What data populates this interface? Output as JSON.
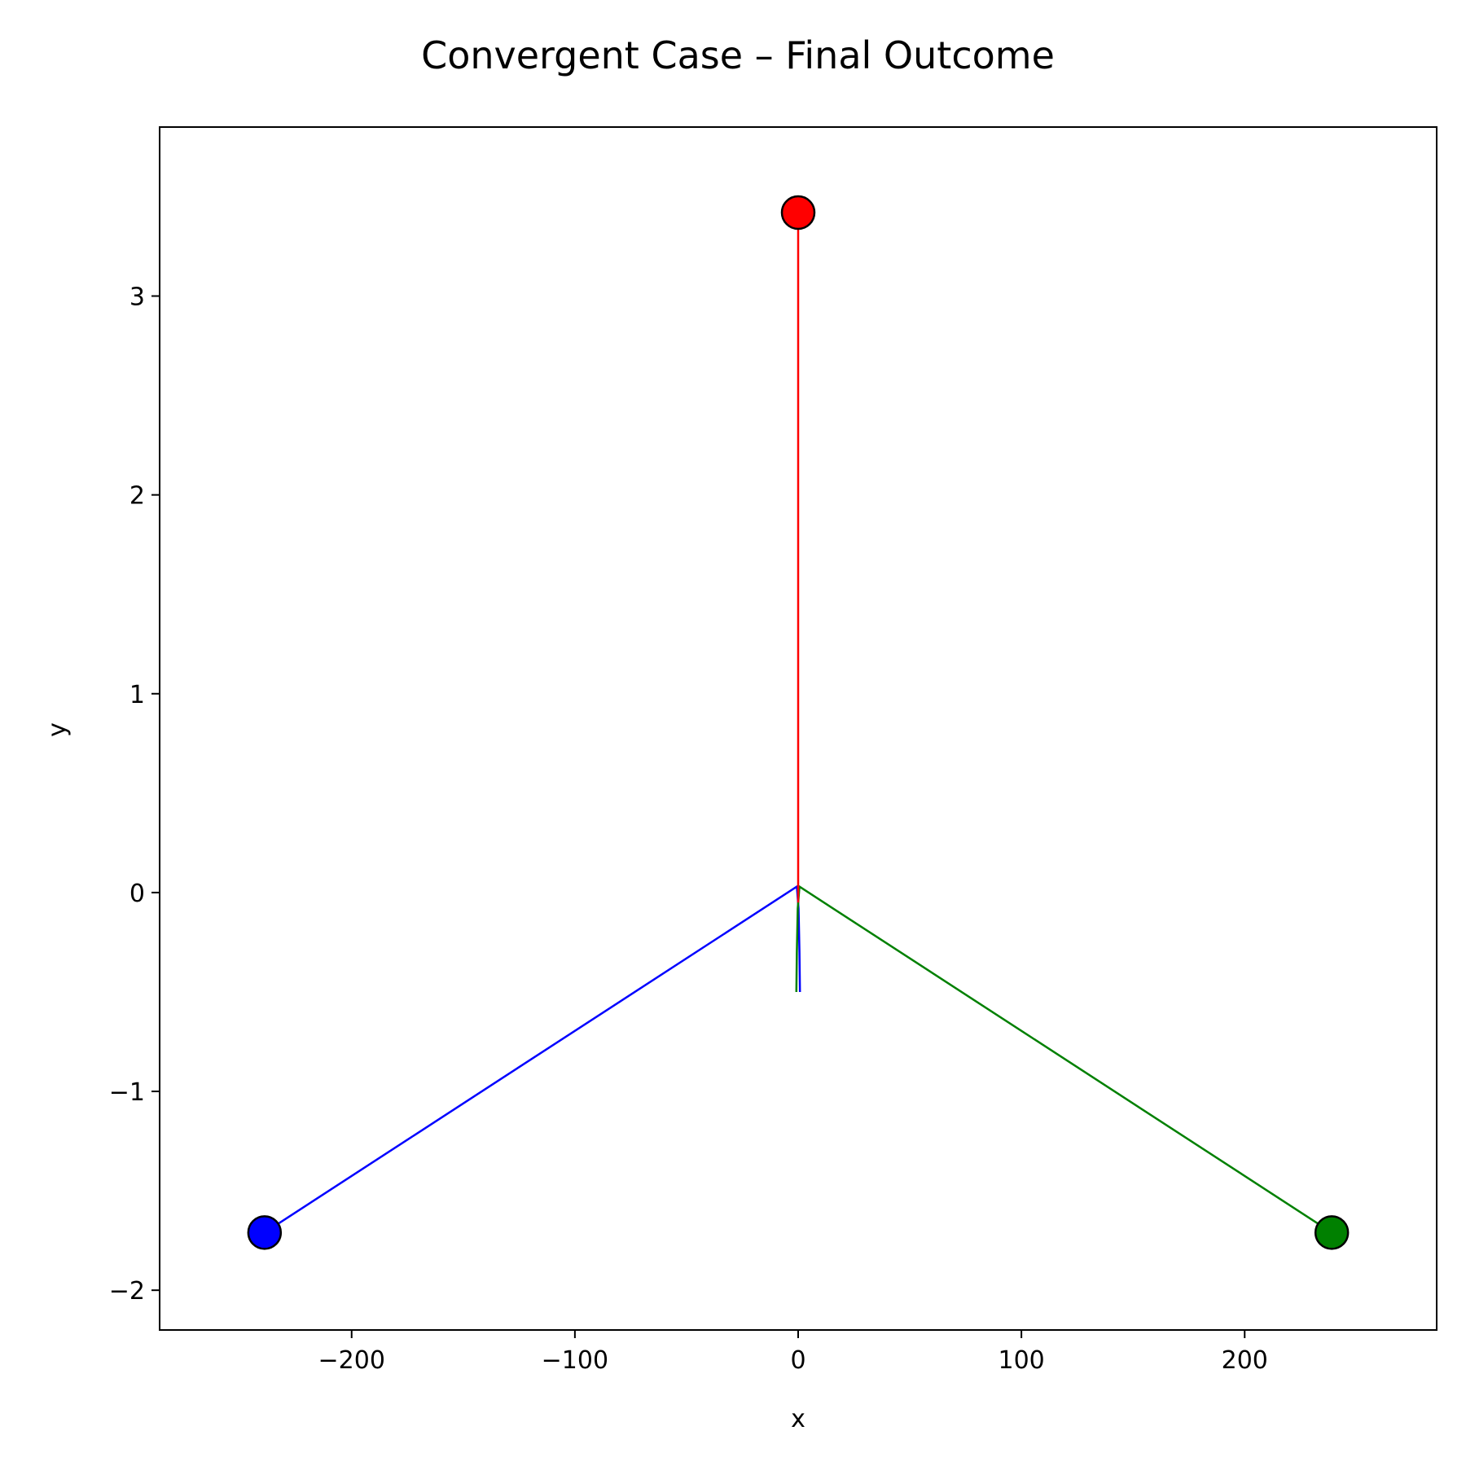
{
  "chart_data": {
    "type": "line",
    "title": "Convergent Case – Final Outcome",
    "xlabel": "x",
    "ylabel": "y",
    "xlim": [
      -286,
      286
    ],
    "ylim": [
      -2.2,
      3.85
    ],
    "xticks": [
      -200,
      -100,
      0,
      100,
      200
    ],
    "yticks": [
      -2,
      -1,
      0,
      1,
      2,
      3
    ],
    "xtick_labels": [
      "−200",
      "−100",
      "0",
      "100",
      "200"
    ],
    "ytick_labels": [
      "−2",
      "−1",
      "0",
      "1",
      "2",
      "3"
    ],
    "grid": false,
    "legend": "none",
    "series": [
      {
        "color": "#0000ff",
        "x": [
          0.8,
          0.6,
          0.2,
          -0.6,
          -239
        ],
        "y": [
          -0.5,
          -0.3,
          -0.08,
          0.03,
          -1.71
        ],
        "endpoint": [
          -239,
          -1.71
        ]
      },
      {
        "color": "#008000",
        "x": [
          -0.8,
          -0.6,
          -0.2,
          0.6,
          239
        ],
        "y": [
          -0.5,
          -0.3,
          -0.08,
          0.03,
          -1.71
        ],
        "endpoint": [
          239,
          -1.71
        ]
      },
      {
        "color": "#ff0000",
        "x": [
          0,
          0,
          0,
          0
        ],
        "y": [
          -0.05,
          0.03,
          1.5,
          3.42
        ],
        "endpoint": [
          0,
          3.42
        ]
      }
    ]
  }
}
